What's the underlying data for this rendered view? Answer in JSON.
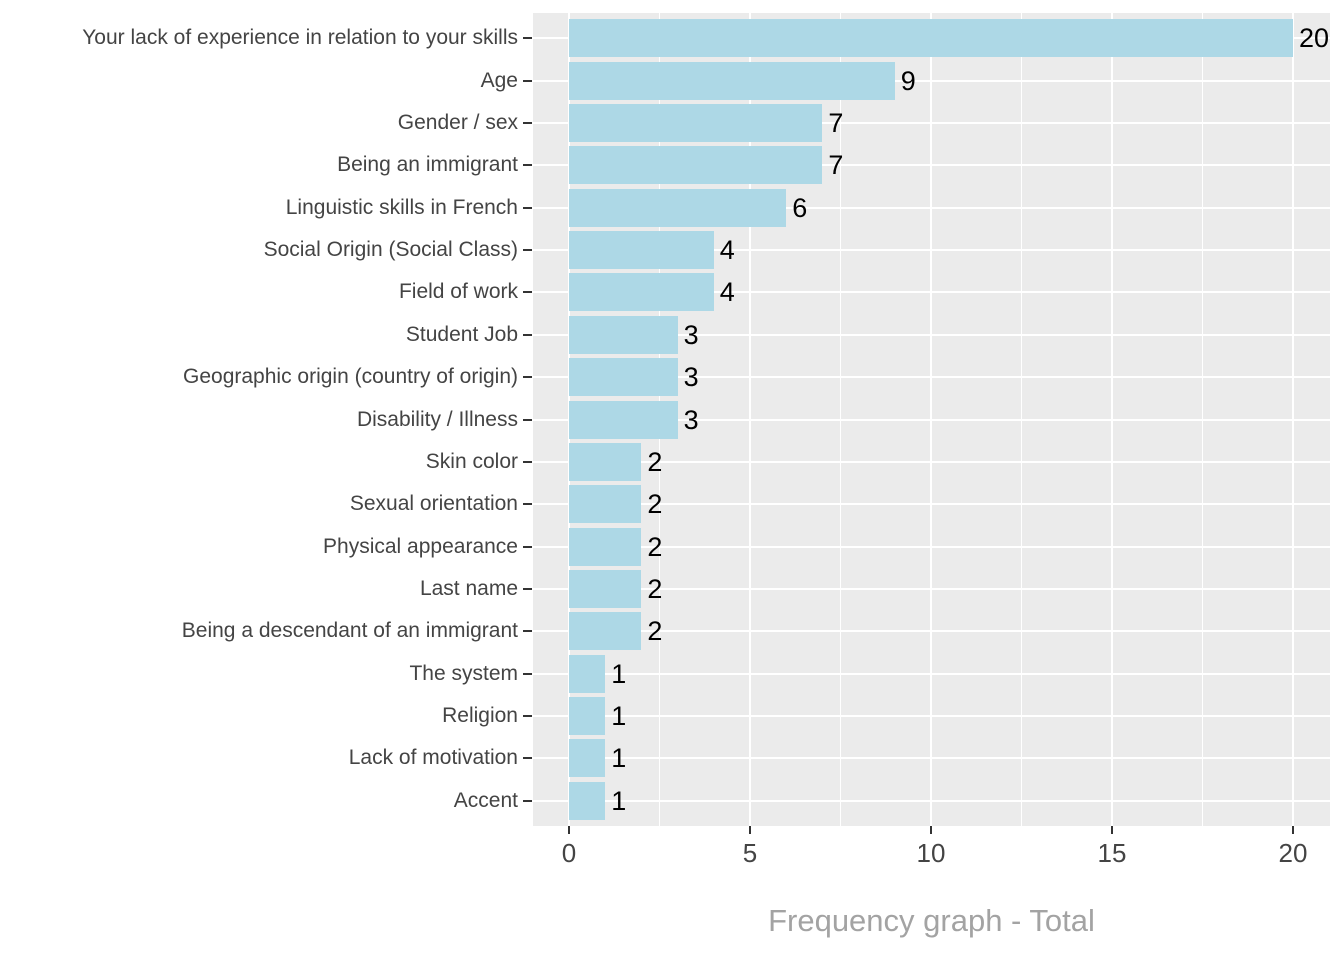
{
  "chart_data": {
    "type": "bar",
    "orientation": "horizontal",
    "caption": "Frequency graph - Total",
    "categories": [
      "Your lack of experience in relation to your skills",
      "Age",
      "Gender / sex",
      "Being an immigrant",
      "Linguistic skills in French",
      "Social Origin (Social Class)",
      "Field of work",
      "Student Job",
      "Geographic origin (country of origin)",
      "Disability / Illness",
      "Skin color",
      "Sexual orientation",
      "Physical appearance",
      "Last name",
      "Being a descendant of an immigrant",
      "The system",
      "Religion",
      "Lack of motivation",
      "Accent"
    ],
    "values": [
      20,
      9,
      7,
      7,
      6,
      4,
      4,
      3,
      3,
      3,
      2,
      2,
      2,
      2,
      2,
      1,
      1,
      1,
      1
    ],
    "value_labels_shown": true,
    "xlabel": "",
    "ylabel": "",
    "xlim": [
      0,
      20
    ],
    "x_major_ticks": [
      0,
      5,
      10,
      15,
      20
    ],
    "x_minor_gridlines": [
      2.5,
      7.5,
      12.5,
      17.5
    ],
    "grid": "on",
    "legend": "none",
    "colors": {
      "bar_fill": "#ADD8E6",
      "panel_background": "#EBEBEB",
      "gridline": "#FFFFFF",
      "axis_text": "#444444",
      "tick_mark": "#333333",
      "value_label": "#000000",
      "caption_text": "#A3A3A3",
      "page_background": "#FFFFFF"
    }
  }
}
